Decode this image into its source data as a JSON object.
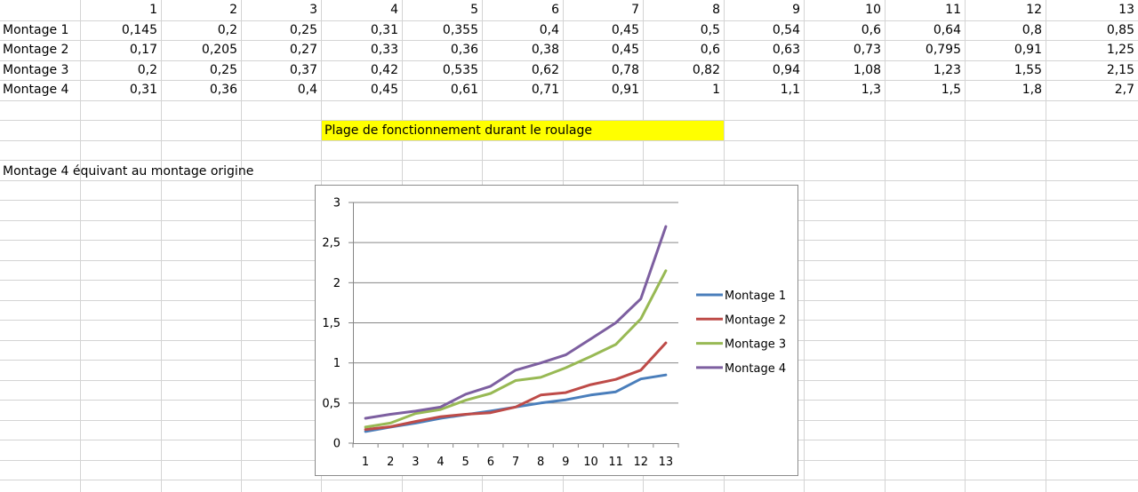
{
  "table": {
    "columns": [
      "1",
      "2",
      "3",
      "4",
      "5",
      "6",
      "7",
      "8",
      "9",
      "10",
      "11",
      "12",
      "13"
    ],
    "rows": [
      {
        "label": "Montage 1",
        "values": [
          "0,145",
          "0,2",
          "0,25",
          "0,31",
          "0,355",
          "0,4",
          "0,45",
          "0,5",
          "0,54",
          "0,6",
          "0,64",
          "0,8",
          "0,85"
        ]
      },
      {
        "label": "Montage 2",
        "values": [
          "0,17",
          "0,205",
          "0,27",
          "0,33",
          "0,36",
          "0,38",
          "0,45",
          "0,6",
          "0,63",
          "0,73",
          "0,795",
          "0,91",
          "1,25"
        ]
      },
      {
        "label": "Montage 3",
        "values": [
          "0,2",
          "0,25",
          "0,37",
          "0,42",
          "0,535",
          "0,62",
          "0,78",
          "0,82",
          "0,94",
          "1,08",
          "1,23",
          "1,55",
          "2,15"
        ]
      },
      {
        "label": "Montage 4",
        "values": [
          "0,31",
          "0,36",
          "0,4",
          "0,45",
          "0,61",
          "0,71",
          "0,91",
          "1",
          "1,1",
          "1,3",
          "1,5",
          "1,8",
          "2,7"
        ]
      }
    ]
  },
  "highlight_text": "Plage de fonctionnement durant le roulage",
  "note_text": "Montage 4 équivant au montage origine",
  "colors": {
    "grid_line": "#d4d4d4",
    "highlight": "#ffff00",
    "series": [
      "#4a7ebb",
      "#be4b48",
      "#98b954",
      "#7d5fa0"
    ]
  },
  "chart_data": {
    "type": "line",
    "categories": [
      "1",
      "2",
      "3",
      "4",
      "5",
      "6",
      "7",
      "8",
      "9",
      "10",
      "11",
      "12",
      "13"
    ],
    "series": [
      {
        "name": "Montage 1",
        "values": [
          0.145,
          0.2,
          0.25,
          0.31,
          0.355,
          0.4,
          0.45,
          0.5,
          0.54,
          0.6,
          0.64,
          0.8,
          0.85
        ]
      },
      {
        "name": "Montage 2",
        "values": [
          0.17,
          0.205,
          0.27,
          0.33,
          0.36,
          0.38,
          0.45,
          0.6,
          0.63,
          0.73,
          0.795,
          0.91,
          1.25
        ]
      },
      {
        "name": "Montage 3",
        "values": [
          0.2,
          0.25,
          0.37,
          0.42,
          0.535,
          0.62,
          0.78,
          0.82,
          0.94,
          1.08,
          1.23,
          1.55,
          2.15
        ]
      },
      {
        "name": "Montage 4",
        "values": [
          0.31,
          0.36,
          0.4,
          0.45,
          0.61,
          0.71,
          0.91,
          1,
          1.1,
          1.3,
          1.5,
          1.8,
          2.7
        ]
      }
    ],
    "y_ticks": [
      "0",
      "0,5",
      "1",
      "1,5",
      "2",
      "2,5",
      "3"
    ],
    "ylim": [
      0,
      3
    ],
    "title": "",
    "xlabel": "",
    "ylabel": "",
    "grid": true,
    "legend": "right"
  }
}
